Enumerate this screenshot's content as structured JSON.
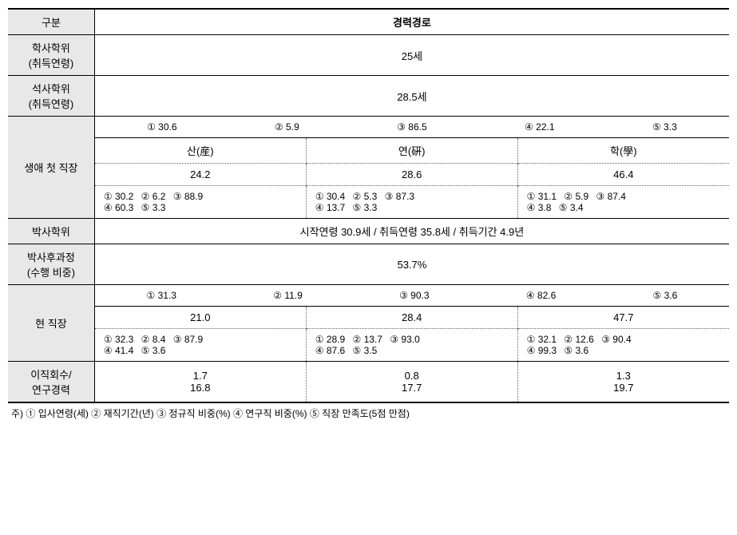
{
  "headers": {
    "category": "구분",
    "career_path": "경력경로"
  },
  "rows": {
    "bachelor": {
      "label_line1": "학사학위",
      "label_line2": "(취득연령)",
      "value": "25세"
    },
    "master": {
      "label_line1": "석사학위",
      "label_line2": "(취득연령)",
      "value": "28.5세"
    },
    "first_job": {
      "label": "생애 첫 직장",
      "overall_stats": {
        "s1": "① 30.6",
        "s2": "② 5.9",
        "s3": "③ 86.5",
        "s4": "④ 22.1",
        "s5": "⑤ 3.3"
      },
      "sectors": {
        "industry": {
          "name": "산(産)",
          "percent": "24.2",
          "stats_line1": {
            "s1": "① 30.2",
            "s2": "② 6.2",
            "s3": "③ 88.9"
          },
          "stats_line2": {
            "s4": "④ 60.3",
            "s5": "⑤ 3.3"
          }
        },
        "research": {
          "name": "연(硏)",
          "percent": "28.6",
          "stats_line1": {
            "s1": "① 30.4",
            "s2": "② 5.3",
            "s3": "③ 87.3"
          },
          "stats_line2": {
            "s4": "④ 13.7",
            "s5": "⑤ 3.3"
          }
        },
        "academic": {
          "name": "학(學)",
          "percent": "46.4",
          "stats_line1": {
            "s1": "① 31.1",
            "s2": "② 5.9",
            "s3": "③ 87.4"
          },
          "stats_line2": {
            "s4": "④ 3.8",
            "s5": "⑤ 3.4"
          }
        }
      }
    },
    "phd": {
      "label": "박사학위",
      "value": "시작연령 30.9세 / 취득연령 35.8세 / 취득기간 4.9년"
    },
    "postdoc": {
      "label_line1": "박사후과정",
      "label_line2": "(수행 비중)",
      "value": "53.7%"
    },
    "current_job": {
      "label": "현 직장",
      "overall_stats": {
        "s1": "① 31.3",
        "s2": "② 11.9",
        "s3": "③ 90.3",
        "s4": "④ 82.6",
        "s5": "⑤ 3.6"
      },
      "sectors": {
        "industry": {
          "percent": "21.0",
          "stats_line1": {
            "s1": "① 32.3",
            "s2": "② 8.4",
            "s3": "③ 87.9"
          },
          "stats_line2": {
            "s4": "④ 41.4",
            "s5": "⑤ 3.6"
          }
        },
        "research": {
          "percent": "28.4",
          "stats_line1": {
            "s1": "① 28.9",
            "s2": "② 13.7",
            "s3": "③ 93.0"
          },
          "stats_line2": {
            "s4": "④ 87.6",
            "s5": "⑤ 3.5"
          }
        },
        "academic": {
          "percent": "47.7",
          "stats_line1": {
            "s1": "① 32.1",
            "s2": "② 12.6",
            "s3": "③ 90.4"
          },
          "stats_line2": {
            "s4": "④ 99.3",
            "s5": "⑤ 3.6"
          }
        }
      }
    },
    "turnover": {
      "label_line1": "이직회수/",
      "label_line2": "연구경력",
      "industry_v1": "1.7",
      "industry_v2": "16.8",
      "research_v1": "0.8",
      "research_v2": "17.7",
      "academic_v1": "1.3",
      "academic_v2": "19.7"
    }
  },
  "footnote": "주) ① 입사연령(세) ② 재직기간(년) ③ 정규직 비중(%) ④ 연구직 비중(%) ⑤ 직장 만족도(5점 만점)"
}
